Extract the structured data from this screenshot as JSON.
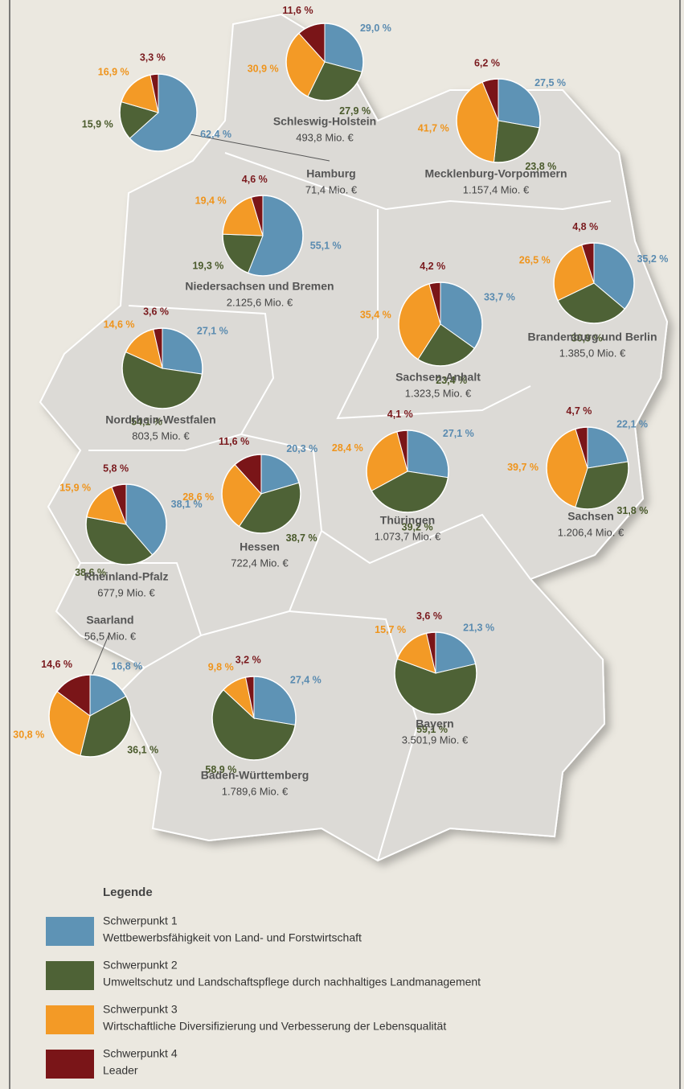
{
  "legend": {
    "title": "Legende",
    "items": [
      {
        "name": "Schwerpunkt 1",
        "description": "Wettbewerbsfähigkeit von Land- und Forstwirtschaft",
        "color": "#5e93b5",
        "label_color": "#5a8bb0"
      },
      {
        "name": "Schwerpunkt 2",
        "description": "Umweltschutz und Landschaftspflege durch nachhaltiges Landmanagement",
        "color": "#4e6236",
        "label_color": "#4a5a2c"
      },
      {
        "name": "Schwerpunkt 3",
        "description": "Wirtschaftliche Diversifizierung und Verbesserung der Lebensqualität",
        "color": "#f39a26",
        "label_color": "#ef941c"
      },
      {
        "name": "Schwerpunkt 4",
        "description": "Leader",
        "color": "#7a1518",
        "label_color": "#7a1a1e"
      }
    ]
  },
  "regions": [
    {
      "name": "Schleswig-Holstein",
      "amount": "493,8 Mio. €",
      "values": [
        29.0,
        27.9,
        30.9,
        11.6
      ],
      "value_labels": [
        "29,0 %",
        "27,9 %",
        "30,9 %",
        "11,6 %"
      ]
    },
    {
      "name": "Hamburg",
      "amount": "71,4 Mio. €",
      "values": [
        62.4,
        15.9,
        16.9,
        3.3
      ],
      "value_labels": [
        "62,4 %",
        "15,9 %",
        "16,9 %",
        "3,3 %"
      ]
    },
    {
      "name": "Mecklenburg-Vorpommern",
      "amount": "1.157,4 Mio. €",
      "values": [
        27.5,
        23.8,
        41.7,
        6.2
      ],
      "value_labels": [
        "27,5 %",
        "23,8 %",
        "41,7 %",
        "6,2 %"
      ]
    },
    {
      "name": "Niedersachsen und Bremen",
      "amount": "2.125,6 Mio. €",
      "values": [
        55.1,
        19.3,
        19.4,
        4.6
      ],
      "value_labels": [
        "55,1 %",
        "19,3 %",
        "19,4 %",
        "4,6 %"
      ]
    },
    {
      "name": "Brandenburg und Berlin",
      "amount": "1.385,0 Mio. €",
      "values": [
        35.2,
        30.9,
        26.5,
        4.8
      ],
      "value_labels": [
        "35,2 %",
        "30,9 %",
        "26,5 %",
        "4,8 %"
      ]
    },
    {
      "name": "Sachsen-Anhalt",
      "amount": "1.323,5 Mio. €",
      "values": [
        33.7,
        23.4,
        35.4,
        4.2
      ],
      "value_labels": [
        "33,7 %",
        "23,4 %",
        "35,4 %",
        "4,2 %"
      ]
    },
    {
      "name": "Nordrhein-Westfalen",
      "amount": "803,5 Mio. €",
      "values": [
        27.1,
        54.1,
        14.6,
        3.6
      ],
      "value_labels": [
        "27,1 %",
        "54,1 %",
        "14,6 %",
        "3,6 %"
      ]
    },
    {
      "name": "Thüringen",
      "amount": "1.073,7 Mio. €",
      "values": [
        27.1,
        39.2,
        28.4,
        4.1
      ],
      "value_labels": [
        "27,1 %",
        "39,2 %",
        "28,4 %",
        "4,1 %"
      ]
    },
    {
      "name": "Sachsen",
      "amount": "1.206,4 Mio. €",
      "values": [
        22.1,
        31.8,
        39.7,
        4.7
      ],
      "value_labels": [
        "22,1 %",
        "31,8 %",
        "39,7 %",
        "4,7 %"
      ]
    },
    {
      "name": "Hessen",
      "amount": "722,4 Mio. €",
      "values": [
        20.3,
        38.7,
        28.6,
        11.6
      ],
      "value_labels": [
        "20,3 %",
        "38,7 %",
        "28,6 %",
        "11,6 %"
      ]
    },
    {
      "name": "Rheinland-Pfalz",
      "amount": "677,9 Mio. €",
      "values": [
        38.1,
        38.6,
        15.9,
        5.8
      ],
      "value_labels": [
        "38,1 %",
        "38,6 %",
        "15,9 %",
        "5,8 %"
      ]
    },
    {
      "name": "Saarland",
      "amount": "56,5 Mio. €",
      "values": [
        16.8,
        36.1,
        30.8,
        14.6
      ],
      "value_labels": [
        "16,8 %",
        "36,1 %",
        "30,8 %",
        "14,6 %"
      ]
    },
    {
      "name": "Baden-Württemberg",
      "amount": "1.789,6 Mio. €",
      "values": [
        27.4,
        58.9,
        9.8,
        3.2
      ],
      "value_labels": [
        "27,4 %",
        "58,9 %",
        "9,8 %",
        "3,2 %"
      ]
    },
    {
      "name": "Bayern",
      "amount": "3.501,9 Mio. €",
      "values": [
        21.3,
        59.1,
        15.7,
        3.6
      ],
      "value_labels": [
        "21,3 %",
        "59,1 %",
        "15,7 %",
        "3,6 %"
      ]
    }
  ]
}
